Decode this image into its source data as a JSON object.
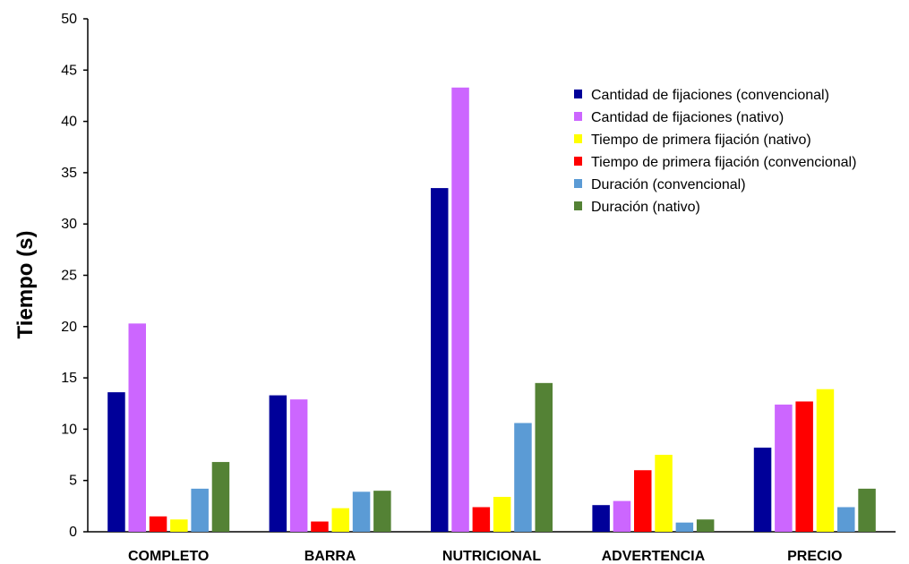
{
  "chart_data": {
    "type": "bar",
    "title": "",
    "xlabel": "",
    "ylabel": "Tiempo (s)",
    "ylim": [
      0,
      50
    ],
    "yticks": [
      0,
      5,
      10,
      15,
      20,
      25,
      30,
      35,
      40,
      45,
      50
    ],
    "grid": false,
    "legend_position": "top-right",
    "categories": [
      "COMPLETO",
      "BARRA",
      "NUTRICIONAL",
      "ADVERTENCIA",
      "PRECIO"
    ],
    "series": [
      {
        "name": "Cantidad de fijaciones (convencional)",
        "color": "#000099",
        "values": [
          13.6,
          13.3,
          33.5,
          2.6,
          8.2
        ]
      },
      {
        "name": "Cantidad de fijaciones (nativo)",
        "color": "#CC66FF",
        "values": [
          20.3,
          12.9,
          43.3,
          3.0,
          12.4
        ]
      },
      {
        "name": "Tiempo de primera fijación (nativo)",
        "color": "#FFFF00",
        "values": [
          1.2,
          2.3,
          3.4,
          7.5,
          13.9
        ]
      },
      {
        "name": "Tiempo de primera fijación (convencional)",
        "color": "#FF0000",
        "values": [
          1.5,
          1.0,
          2.4,
          6.0,
          12.7
        ]
      },
      {
        "name": "Duración (convencional)",
        "color": "#5B9BD5",
        "values": [
          4.2,
          3.9,
          10.6,
          0.9,
          2.4
        ]
      },
      {
        "name": "Duración (nativo)",
        "color": "#548235",
        "values": [
          6.8,
          4.0,
          14.5,
          1.2,
          4.2
        ]
      }
    ],
    "bar_order": [
      0,
      1,
      3,
      2,
      4,
      5
    ]
  }
}
